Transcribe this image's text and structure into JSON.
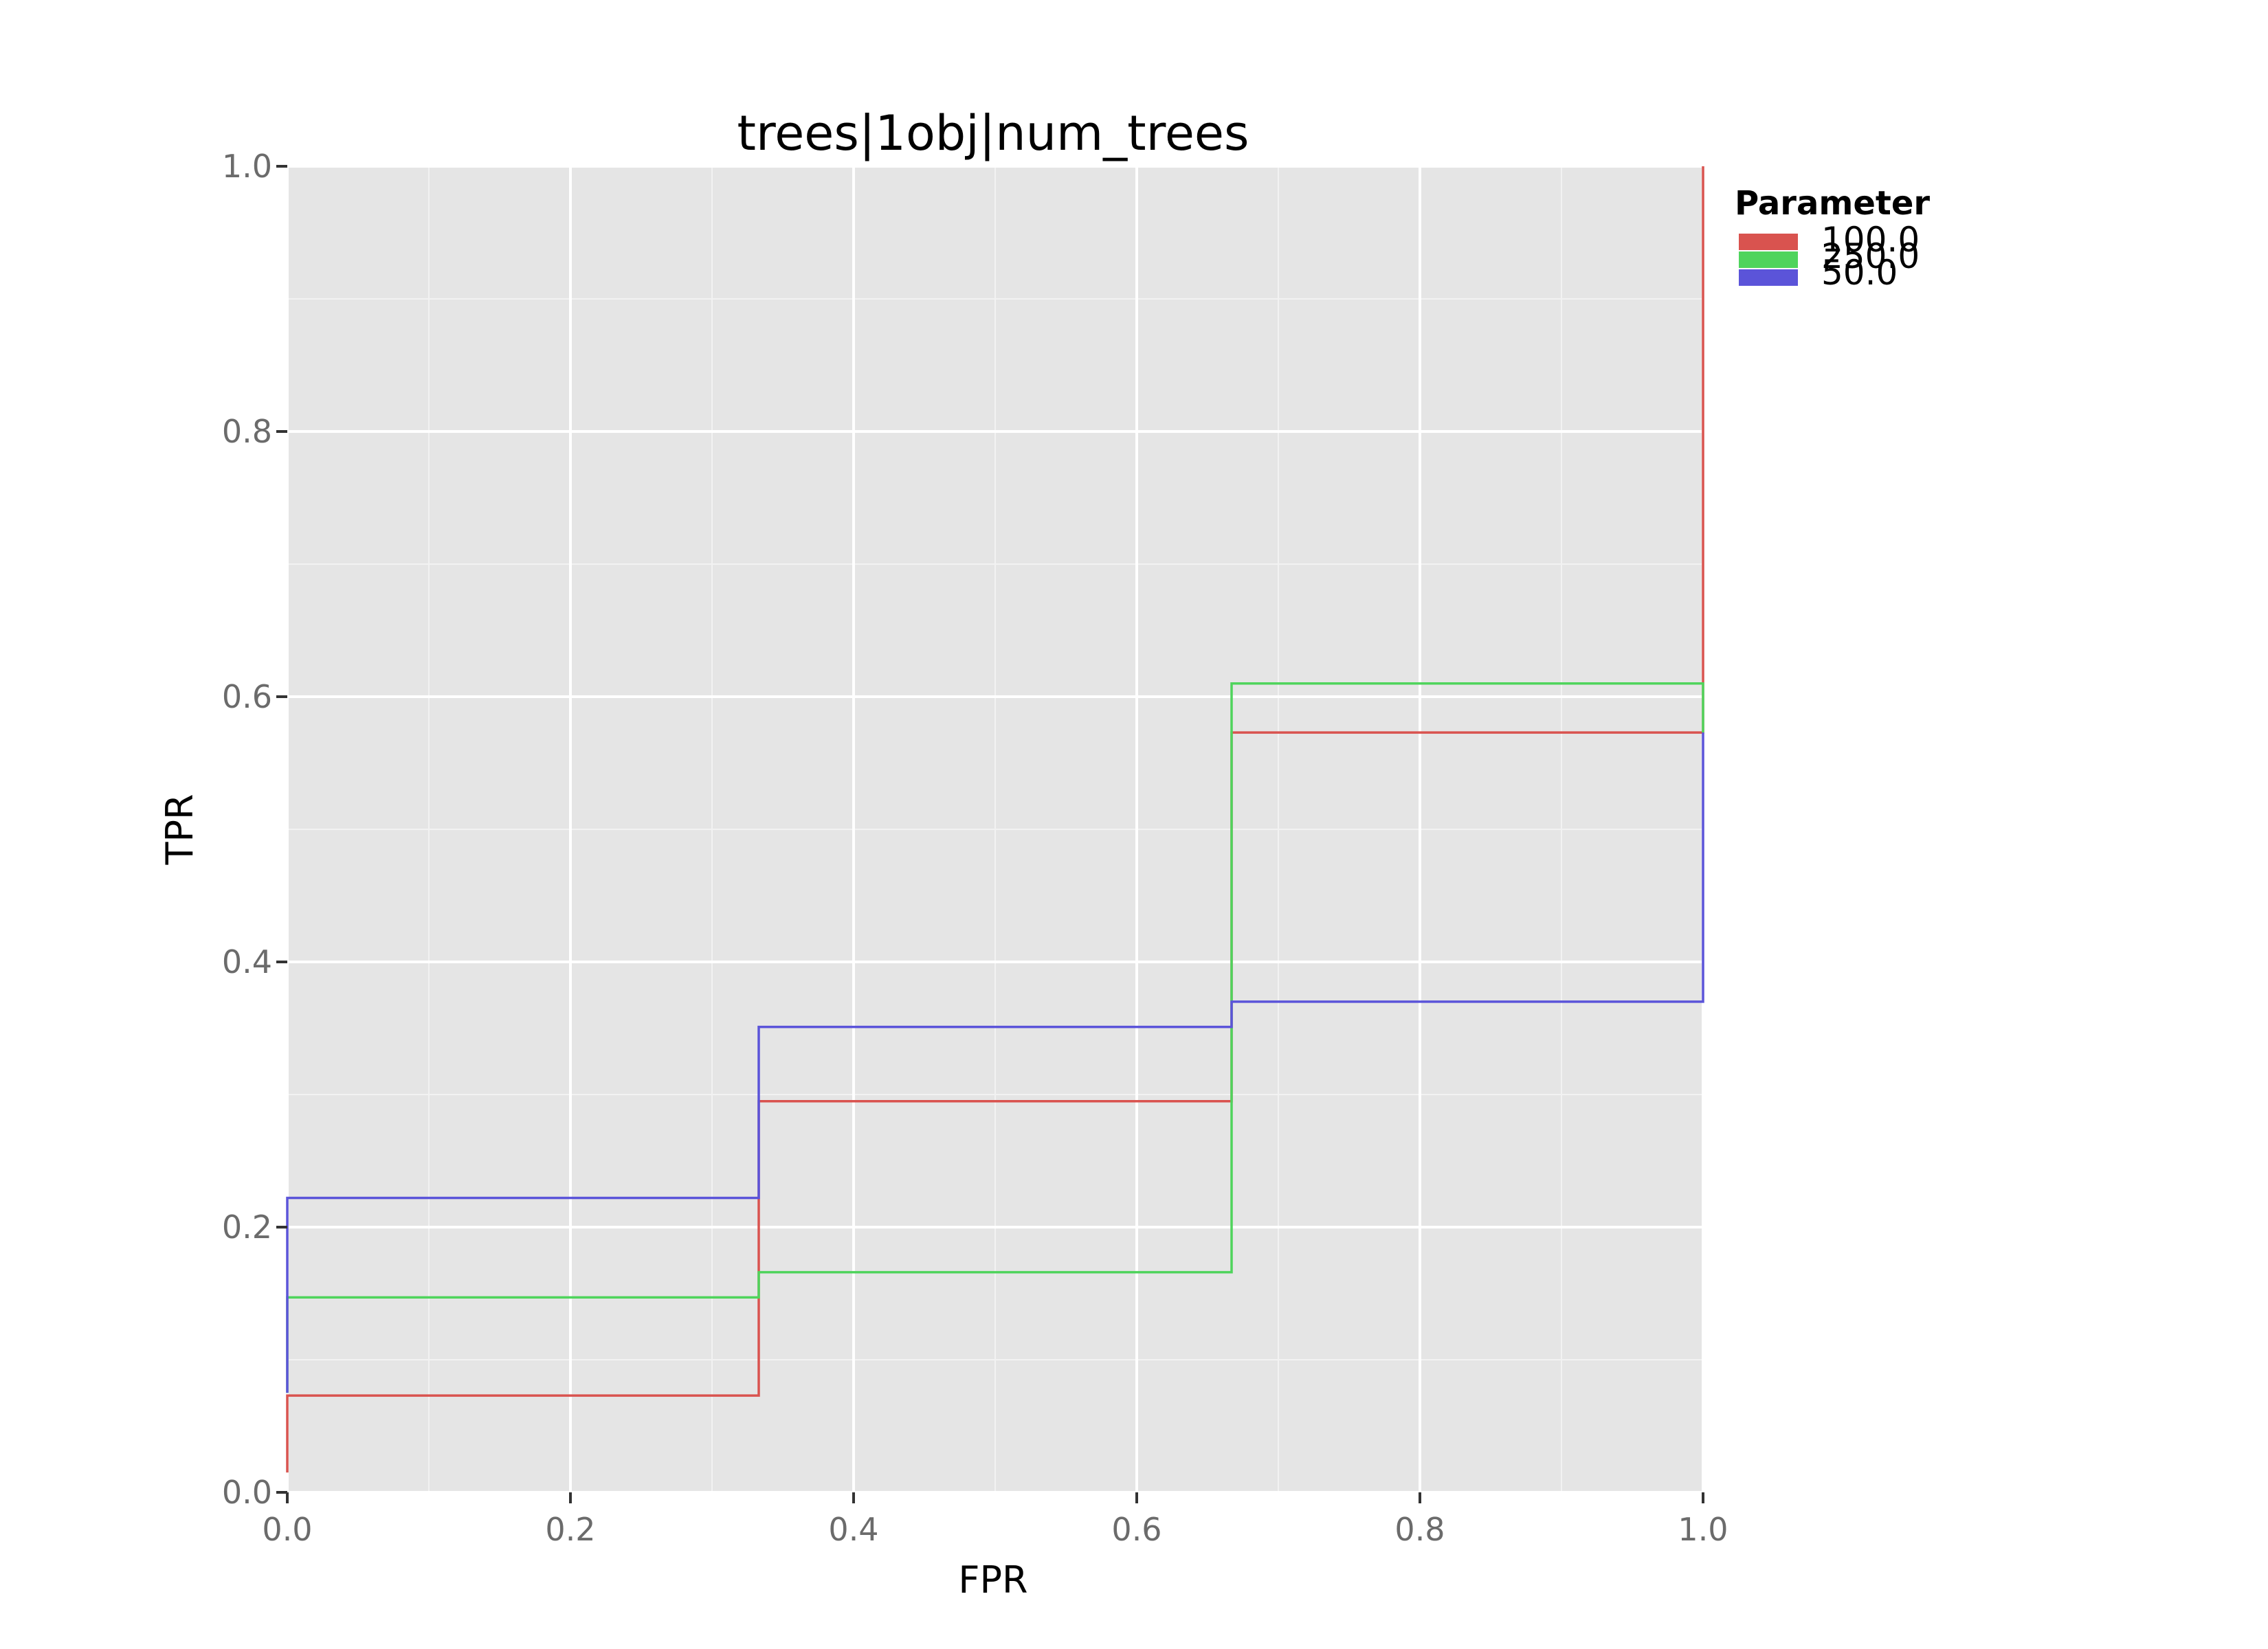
{
  "chart_data": {
    "type": "line",
    "step": true,
    "title": "trees|1obj|num_trees",
    "xlabel": "FPR",
    "ylabel": "TPR",
    "xlim": [
      0.0,
      1.0
    ],
    "ylim": [
      0.0,
      1.0
    ],
    "xticks": [
      "0.0",
      "0.2",
      "0.4",
      "0.6",
      "0.8",
      "1.0"
    ],
    "yticks": [
      "0.0",
      "0.2",
      "0.4",
      "0.6",
      "0.8",
      "1.0"
    ],
    "grid": true,
    "legend": {
      "title": "Parameter",
      "position": "right"
    },
    "series": [
      {
        "name": "100.0",
        "color": "#d9534f",
        "x": [
          0.0,
          0.0,
          0.333,
          0.333,
          0.667,
          0.667,
          1.0,
          1.0
        ],
        "y": [
          0.015,
          0.073,
          0.073,
          0.295,
          0.295,
          0.573,
          0.573,
          1.0
        ]
      },
      {
        "name": "250.0",
        "color": "#4fd45c",
        "x": [
          0.0,
          0.0,
          0.333,
          0.333,
          0.667,
          0.667,
          1.0,
          1.0
        ],
        "y": [
          0.075,
          0.147,
          0.147,
          0.166,
          0.166,
          0.61,
          0.61,
          0.573
        ]
      },
      {
        "name": "50.0",
        "color": "#5b54d9",
        "x": [
          0.0,
          0.0,
          0.333,
          0.333,
          0.667,
          0.667,
          1.0,
          1.0
        ],
        "y": [
          0.075,
          0.222,
          0.222,
          0.351,
          0.351,
          0.37,
          0.37,
          0.573
        ]
      }
    ]
  }
}
